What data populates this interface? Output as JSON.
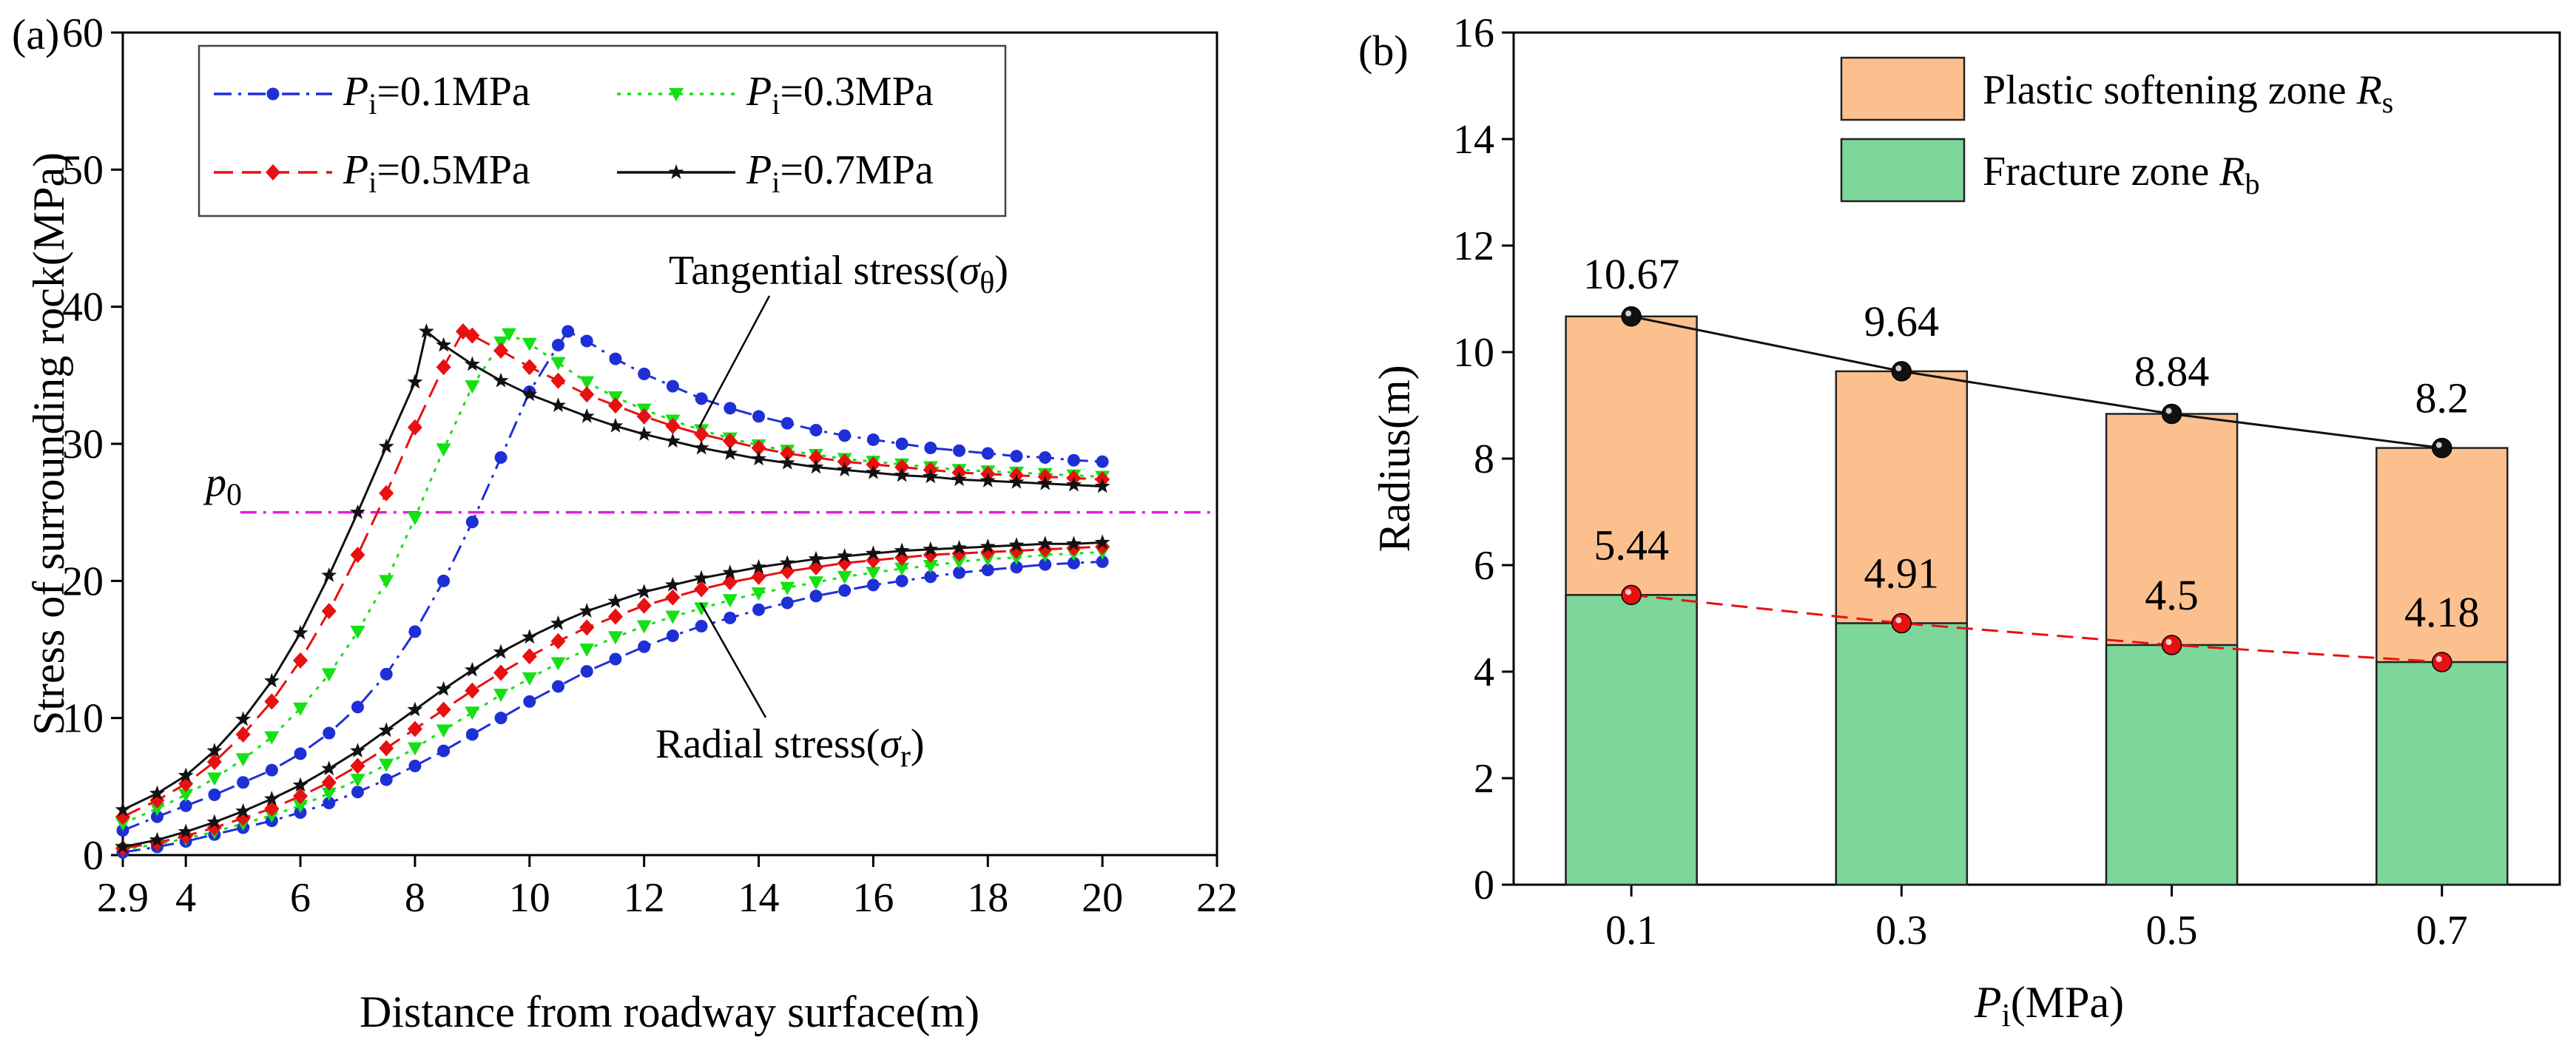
{
  "chart_data": [
    {
      "panel": "(a)",
      "type": "line",
      "xlabel": "Distance from roadway surface(m)",
      "ylabel": "Stress of surrounding rock(MPa)",
      "xlim": [
        2.9,
        22
      ],
      "ylim": [
        0,
        60
      ],
      "xticks": [
        "2.9",
        "4",
        "6",
        "8",
        "10",
        "12",
        "14",
        "16",
        "18",
        "20",
        "22"
      ],
      "yticks": [
        "0",
        "10",
        "20",
        "30",
        "40",
        "50",
        "60"
      ],
      "p0": {
        "label": "p",
        "sub": "0",
        "value": 25
      },
      "annotations": {
        "tangential": {
          "text": "Tangential stress(",
          "sym": "σ",
          "sub": "θ",
          "close": ")"
        },
        "radial": {
          "text": "Radial stress(",
          "sym": "σ",
          "sub": "r",
          "close": ")"
        }
      },
      "legend_prefix": "P",
      "legend_sub": "i",
      "series": [
        {
          "name": "=0.1MPa",
          "color": "#1f2fd6",
          "marker": "circle",
          "tangential": {
            "x": [
              2.9,
              3.5,
              4,
              4.5,
              5,
              5.5,
              6,
              6.5,
              7,
              7.5,
              8,
              8.5,
              9,
              9.5,
              10,
              10.5,
              10.67,
              11,
              11.5,
              12,
              12.5,
              13,
              13.5,
              14,
              14.5,
              15,
              15.5,
              16,
              16.5,
              17,
              17.5,
              18,
              18.5,
              19,
              19.5,
              20
            ],
            "y": [
              1.8,
              2.8,
              3.6,
              4.4,
              5.3,
              6.2,
              7.4,
              8.9,
              10.8,
              13.2,
              16.3,
              20.0,
              24.3,
              29.0,
              33.8,
              37.2,
              38.2,
              37.5,
              36.2,
              35.1,
              34.2,
              33.3,
              32.6,
              32.0,
              31.5,
              31.0,
              30.6,
              30.3,
              30.0,
              29.7,
              29.5,
              29.3,
              29.1,
              29.0,
              28.8,
              28.7
            ]
          },
          "radial": {
            "x": [
              2.9,
              3.5,
              4,
              4.5,
              5,
              5.5,
              6,
              6.5,
              7,
              7.5,
              8,
              8.5,
              9,
              9.5,
              10,
              10.5,
              11,
              11.5,
              12,
              12.5,
              13,
              13.5,
              14,
              14.5,
              15,
              15.5,
              16,
              16.5,
              17,
              17.5,
              18,
              18.5,
              19,
              19.5,
              20
            ],
            "y": [
              0.2,
              0.6,
              1.0,
              1.5,
              2.0,
              2.5,
              3.1,
              3.8,
              4.6,
              5.5,
              6.5,
              7.6,
              8.8,
              10.0,
              11.2,
              12.3,
              13.4,
              14.3,
              15.2,
              16.0,
              16.7,
              17.3,
              17.9,
              18.4,
              18.9,
              19.3,
              19.7,
              20.0,
              20.3,
              20.6,
              20.8,
              21.0,
              21.2,
              21.3,
              21.4
            ]
          }
        },
        {
          "name": "=0.3MPa",
          "color": "#15e015",
          "marker": "triangle-down",
          "tangential": {
            "x": [
              2.9,
              3.5,
              4,
              4.5,
              5,
              5.5,
              6,
              6.5,
              7,
              7.5,
              8,
              8.5,
              9,
              9.5,
              9.64,
              10,
              10.5,
              11,
              11.5,
              12,
              12.5,
              13,
              13.5,
              14,
              14.5,
              15,
              15.5,
              16,
              16.5,
              17,
              17.5,
              18,
              18.5,
              19,
              19.5,
              20
            ],
            "y": [
              2.3,
              3.4,
              4.4,
              5.6,
              7.0,
              8.6,
              10.7,
              13.2,
              16.3,
              20.0,
              24.6,
              29.6,
              34.2,
              37.4,
              38.0,
              37.3,
              35.9,
              34.5,
              33.4,
              32.5,
              31.7,
              31.0,
              30.4,
              29.9,
              29.5,
              29.2,
              28.9,
              28.7,
              28.5,
              28.3,
              28.1,
              28.0,
              27.9,
              27.8,
              27.7,
              27.6
            ]
          },
          "radial": {
            "x": [
              2.9,
              3.5,
              4,
              4.5,
              5,
              5.5,
              6,
              6.5,
              7,
              7.5,
              8,
              8.5,
              9,
              9.5,
              10,
              10.5,
              11,
              11.5,
              12,
              12.5,
              13,
              13.5,
              14,
              14.5,
              15,
              15.5,
              16,
              16.5,
              17,
              17.5,
              18,
              18.5,
              19,
              19.5,
              20
            ],
            "y": [
              0.4,
              0.8,
              1.2,
              1.7,
              2.3,
              2.9,
              3.6,
              4.5,
              5.5,
              6.6,
              7.8,
              9.1,
              10.4,
              11.7,
              12.9,
              14.0,
              15.0,
              15.9,
              16.7,
              17.4,
              18.0,
              18.6,
              19.1,
              19.5,
              19.9,
              20.3,
              20.6,
              20.9,
              21.1,
              21.4,
              21.6,
              21.7,
              21.9,
              22.0,
              22.1
            ]
          }
        },
        {
          "name": "=0.5MPa",
          "color": "#e81010",
          "marker": "diamond",
          "tangential": {
            "x": [
              2.9,
              3.5,
              4,
              4.5,
              5,
              5.5,
              6,
              6.5,
              7,
              7.5,
              8,
              8.5,
              8.84,
              9,
              9.5,
              10,
              10.5,
              11,
              11.5,
              12,
              12.5,
              13,
              13.5,
              14,
              14.5,
              15,
              15.5,
              16,
              16.5,
              17,
              17.5,
              18,
              18.5,
              19,
              19.5,
              20
            ],
            "y": [
              2.8,
              4.0,
              5.2,
              6.8,
              8.8,
              11.2,
              14.2,
              17.8,
              21.9,
              26.4,
              31.2,
              35.6,
              38.2,
              37.9,
              36.8,
              35.6,
              34.6,
              33.6,
              32.8,
              32.0,
              31.3,
              30.7,
              30.2,
              29.7,
              29.3,
              29.0,
              28.7,
              28.5,
              28.3,
              28.1,
              27.9,
              27.8,
              27.7,
              27.6,
              27.5,
              27.4
            ]
          },
          "radial": {
            "x": [
              2.9,
              3.5,
              4,
              4.5,
              5,
              5.5,
              6,
              6.5,
              7,
              7.5,
              8,
              8.5,
              9,
              9.5,
              10,
              10.5,
              11,
              11.5,
              12,
              12.5,
              13,
              13.5,
              14,
              14.5,
              15,
              15.5,
              16,
              16.5,
              17,
              17.5,
              18,
              18.5,
              19,
              19.5,
              20
            ],
            "y": [
              0.5,
              0.9,
              1.4,
              2.0,
              2.7,
              3.4,
              4.3,
              5.3,
              6.5,
              7.8,
              9.2,
              10.6,
              12.0,
              13.3,
              14.5,
              15.6,
              16.6,
              17.4,
              18.2,
              18.8,
              19.4,
              19.9,
              20.3,
              20.7,
              21.0,
              21.3,
              21.5,
              21.7,
              21.9,
              22.0,
              22.1,
              22.2,
              22.3,
              22.4,
              22.5
            ]
          }
        },
        {
          "name": "=0.7MPa",
          "color": "#111111",
          "marker": "star",
          "tangential": {
            "x": [
              2.9,
              3.5,
              4,
              4.5,
              5,
              5.5,
              6,
              6.5,
              7,
              7.5,
              8,
              8.2,
              8.5,
              9,
              9.5,
              10,
              10.5,
              11,
              11.5,
              12,
              12.5,
              13,
              13.5,
              14,
              14.5,
              15,
              15.5,
              16,
              16.5,
              17,
              17.5,
              18,
              18.5,
              19,
              19.5,
              20
            ],
            "y": [
              3.3,
              4.5,
              5.8,
              7.6,
              9.9,
              12.7,
              16.2,
              20.4,
              25.0,
              29.8,
              34.5,
              38.2,
              37.2,
              35.8,
              34.6,
              33.6,
              32.8,
              32.0,
              31.3,
              30.7,
              30.2,
              29.7,
              29.3,
              28.9,
              28.6,
              28.3,
              28.1,
              27.9,
              27.7,
              27.6,
              27.4,
              27.3,
              27.2,
              27.1,
              27.0,
              26.9
            ]
          },
          "radial": {
            "x": [
              2.9,
              3.5,
              4,
              4.5,
              5,
              5.5,
              6,
              6.5,
              7,
              7.5,
              8,
              8.5,
              9,
              9.5,
              10,
              10.5,
              11,
              11.5,
              12,
              12.5,
              13,
              13.5,
              14,
              14.5,
              15,
              15.5,
              16,
              16.5,
              17,
              17.5,
              18,
              18.5,
              19,
              19.5,
              20
            ],
            "y": [
              0.6,
              1.1,
              1.7,
              2.4,
              3.2,
              4.1,
              5.1,
              6.3,
              7.6,
              9.1,
              10.6,
              12.1,
              13.5,
              14.8,
              15.9,
              16.9,
              17.8,
              18.5,
              19.2,
              19.7,
              20.2,
              20.6,
              21.0,
              21.3,
              21.6,
              21.8,
              22.0,
              22.2,
              22.3,
              22.4,
              22.5,
              22.6,
              22.7,
              22.7,
              22.8
            ]
          }
        }
      ]
    },
    {
      "panel": "(b)",
      "type": "bar",
      "xlabel_main": "P",
      "xlabel_sub": "i",
      "xlabel_rest": "(MPa)",
      "ylabel": "Radius(m)",
      "ylim": [
        0,
        16
      ],
      "yticks": [
        "0",
        "2",
        "4",
        "6",
        "8",
        "10",
        "12",
        "14",
        "16"
      ],
      "categories": [
        "0.1",
        "0.3",
        "0.5",
        "0.7"
      ],
      "series": [
        {
          "name": "Plastic softening zone ",
          "sym": "R",
          "sub": "s",
          "color": "#fbc08e",
          "line_color": "#111111",
          "values": [
            10.67,
            9.64,
            8.84,
            8.2
          ],
          "labels": [
            "10.67",
            "9.64",
            "8.84",
            "8.2"
          ]
        },
        {
          "name": "Fracture zone ",
          "sym": "R",
          "sub": "b",
          "color": "#7dd69a",
          "line_color": "#e81010",
          "values": [
            5.44,
            4.91,
            4.5,
            4.18
          ],
          "labels": [
            "5.44",
            "4.91",
            "4.5",
            "4.18"
          ]
        }
      ]
    }
  ]
}
